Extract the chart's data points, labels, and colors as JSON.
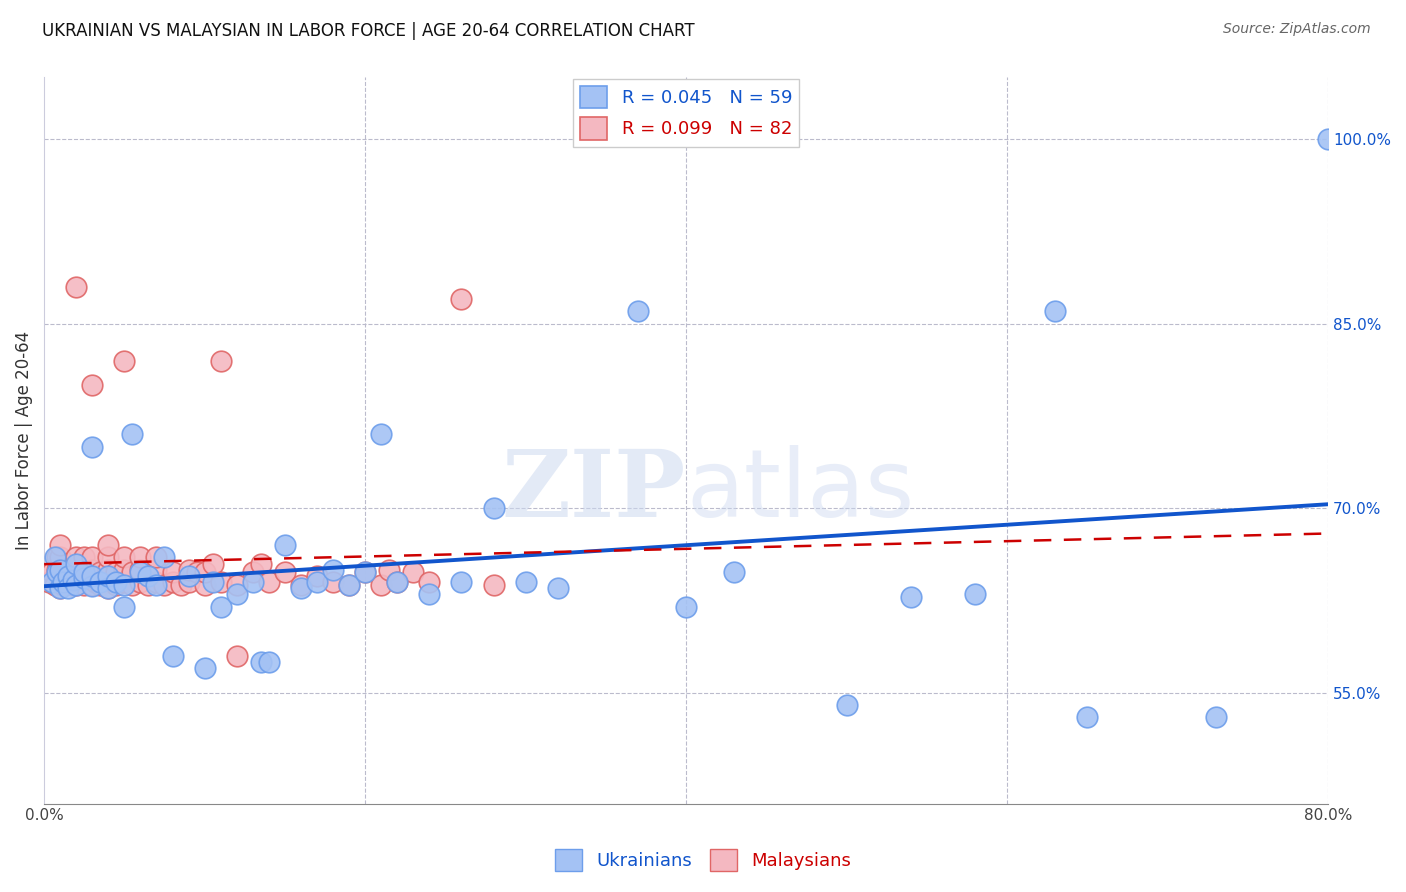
{
  "title": "UKRAINIAN VS MALAYSIAN IN LABOR FORCE | AGE 20-64 CORRELATION CHART",
  "source": "Source: ZipAtlas.com",
  "ylabel": "In Labor Force | Age 20-64",
  "ytick_values": [
    0.55,
    0.7,
    0.85,
    1.0
  ],
  "ytick_labels": [
    "55.0%",
    "70.0%",
    "85.0%",
    "100.0%"
  ],
  "xlim": [
    0.0,
    0.8
  ],
  "ylim": [
    0.46,
    1.05
  ],
  "blue_R": 0.045,
  "blue_N": 59,
  "pink_R": 0.099,
  "pink_N": 82,
  "blue_color": "#a4c2f4",
  "pink_color": "#f4b8c1",
  "blue_edge_color": "#6d9eeb",
  "pink_edge_color": "#e06666",
  "blue_line_color": "#1155cc",
  "pink_line_color": "#cc0000",
  "legend_label_blue": "Ukrainians",
  "legend_label_pink": "Malaysians",
  "blue_x": [
    0.005,
    0.007,
    0.008,
    0.01,
    0.01,
    0.012,
    0.015,
    0.015,
    0.018,
    0.02,
    0.02,
    0.025,
    0.025,
    0.03,
    0.03,
    0.03,
    0.035,
    0.04,
    0.04,
    0.045,
    0.05,
    0.05,
    0.055,
    0.06,
    0.065,
    0.07,
    0.075,
    0.08,
    0.09,
    0.1,
    0.105,
    0.11,
    0.12,
    0.13,
    0.135,
    0.14,
    0.15,
    0.16,
    0.17,
    0.18,
    0.19,
    0.2,
    0.21,
    0.22,
    0.24,
    0.26,
    0.28,
    0.3,
    0.32,
    0.37,
    0.4,
    0.43,
    0.5,
    0.54,
    0.58,
    0.63,
    0.65,
    0.73,
    0.8
  ],
  "blue_y": [
    0.64,
    0.66,
    0.648,
    0.635,
    0.65,
    0.64,
    0.645,
    0.635,
    0.642,
    0.638,
    0.655,
    0.643,
    0.648,
    0.637,
    0.645,
    0.75,
    0.64,
    0.635,
    0.645,
    0.64,
    0.638,
    0.62,
    0.76,
    0.648,
    0.645,
    0.638,
    0.66,
    0.58,
    0.645,
    0.57,
    0.64,
    0.62,
    0.63,
    0.64,
    0.575,
    0.575,
    0.67,
    0.635,
    0.64,
    0.65,
    0.638,
    0.648,
    0.76,
    0.64,
    0.63,
    0.64,
    0.7,
    0.64,
    0.635,
    0.86,
    0.62,
    0.648,
    0.54,
    0.628,
    0.63,
    0.86,
    0.53,
    0.53,
    1.0
  ],
  "pink_x": [
    0.003,
    0.005,
    0.007,
    0.008,
    0.008,
    0.01,
    0.01,
    0.01,
    0.01,
    0.012,
    0.015,
    0.015,
    0.015,
    0.018,
    0.018,
    0.02,
    0.02,
    0.02,
    0.02,
    0.02,
    0.022,
    0.025,
    0.025,
    0.025,
    0.028,
    0.03,
    0.03,
    0.03,
    0.03,
    0.032,
    0.035,
    0.035,
    0.04,
    0.04,
    0.04,
    0.04,
    0.04,
    0.045,
    0.045,
    0.05,
    0.05,
    0.05,
    0.05,
    0.055,
    0.055,
    0.06,
    0.06,
    0.06,
    0.065,
    0.07,
    0.07,
    0.07,
    0.075,
    0.08,
    0.08,
    0.085,
    0.09,
    0.09,
    0.095,
    0.1,
    0.1,
    0.105,
    0.11,
    0.11,
    0.12,
    0.12,
    0.13,
    0.135,
    0.14,
    0.15,
    0.16,
    0.17,
    0.18,
    0.19,
    0.2,
    0.21,
    0.215,
    0.22,
    0.23,
    0.24,
    0.26,
    0.28
  ],
  "pink_y": [
    0.64,
    0.648,
    0.638,
    0.65,
    0.66,
    0.635,
    0.648,
    0.66,
    0.67,
    0.638,
    0.64,
    0.65,
    0.64,
    0.638,
    0.648,
    0.645,
    0.638,
    0.655,
    0.66,
    0.88,
    0.64,
    0.648,
    0.66,
    0.638,
    0.645,
    0.638,
    0.65,
    0.66,
    0.8,
    0.64,
    0.638,
    0.648,
    0.64,
    0.65,
    0.66,
    0.635,
    0.67,
    0.638,
    0.648,
    0.64,
    0.65,
    0.66,
    0.82,
    0.638,
    0.648,
    0.64,
    0.65,
    0.66,
    0.638,
    0.64,
    0.65,
    0.66,
    0.638,
    0.64,
    0.648,
    0.638,
    0.64,
    0.65,
    0.648,
    0.638,
    0.648,
    0.655,
    0.64,
    0.82,
    0.638,
    0.58,
    0.648,
    0.655,
    0.64,
    0.648,
    0.638,
    0.645,
    0.64,
    0.638,
    0.648,
    0.638,
    0.65,
    0.64,
    0.648,
    0.64,
    0.87,
    0.638
  ]
}
